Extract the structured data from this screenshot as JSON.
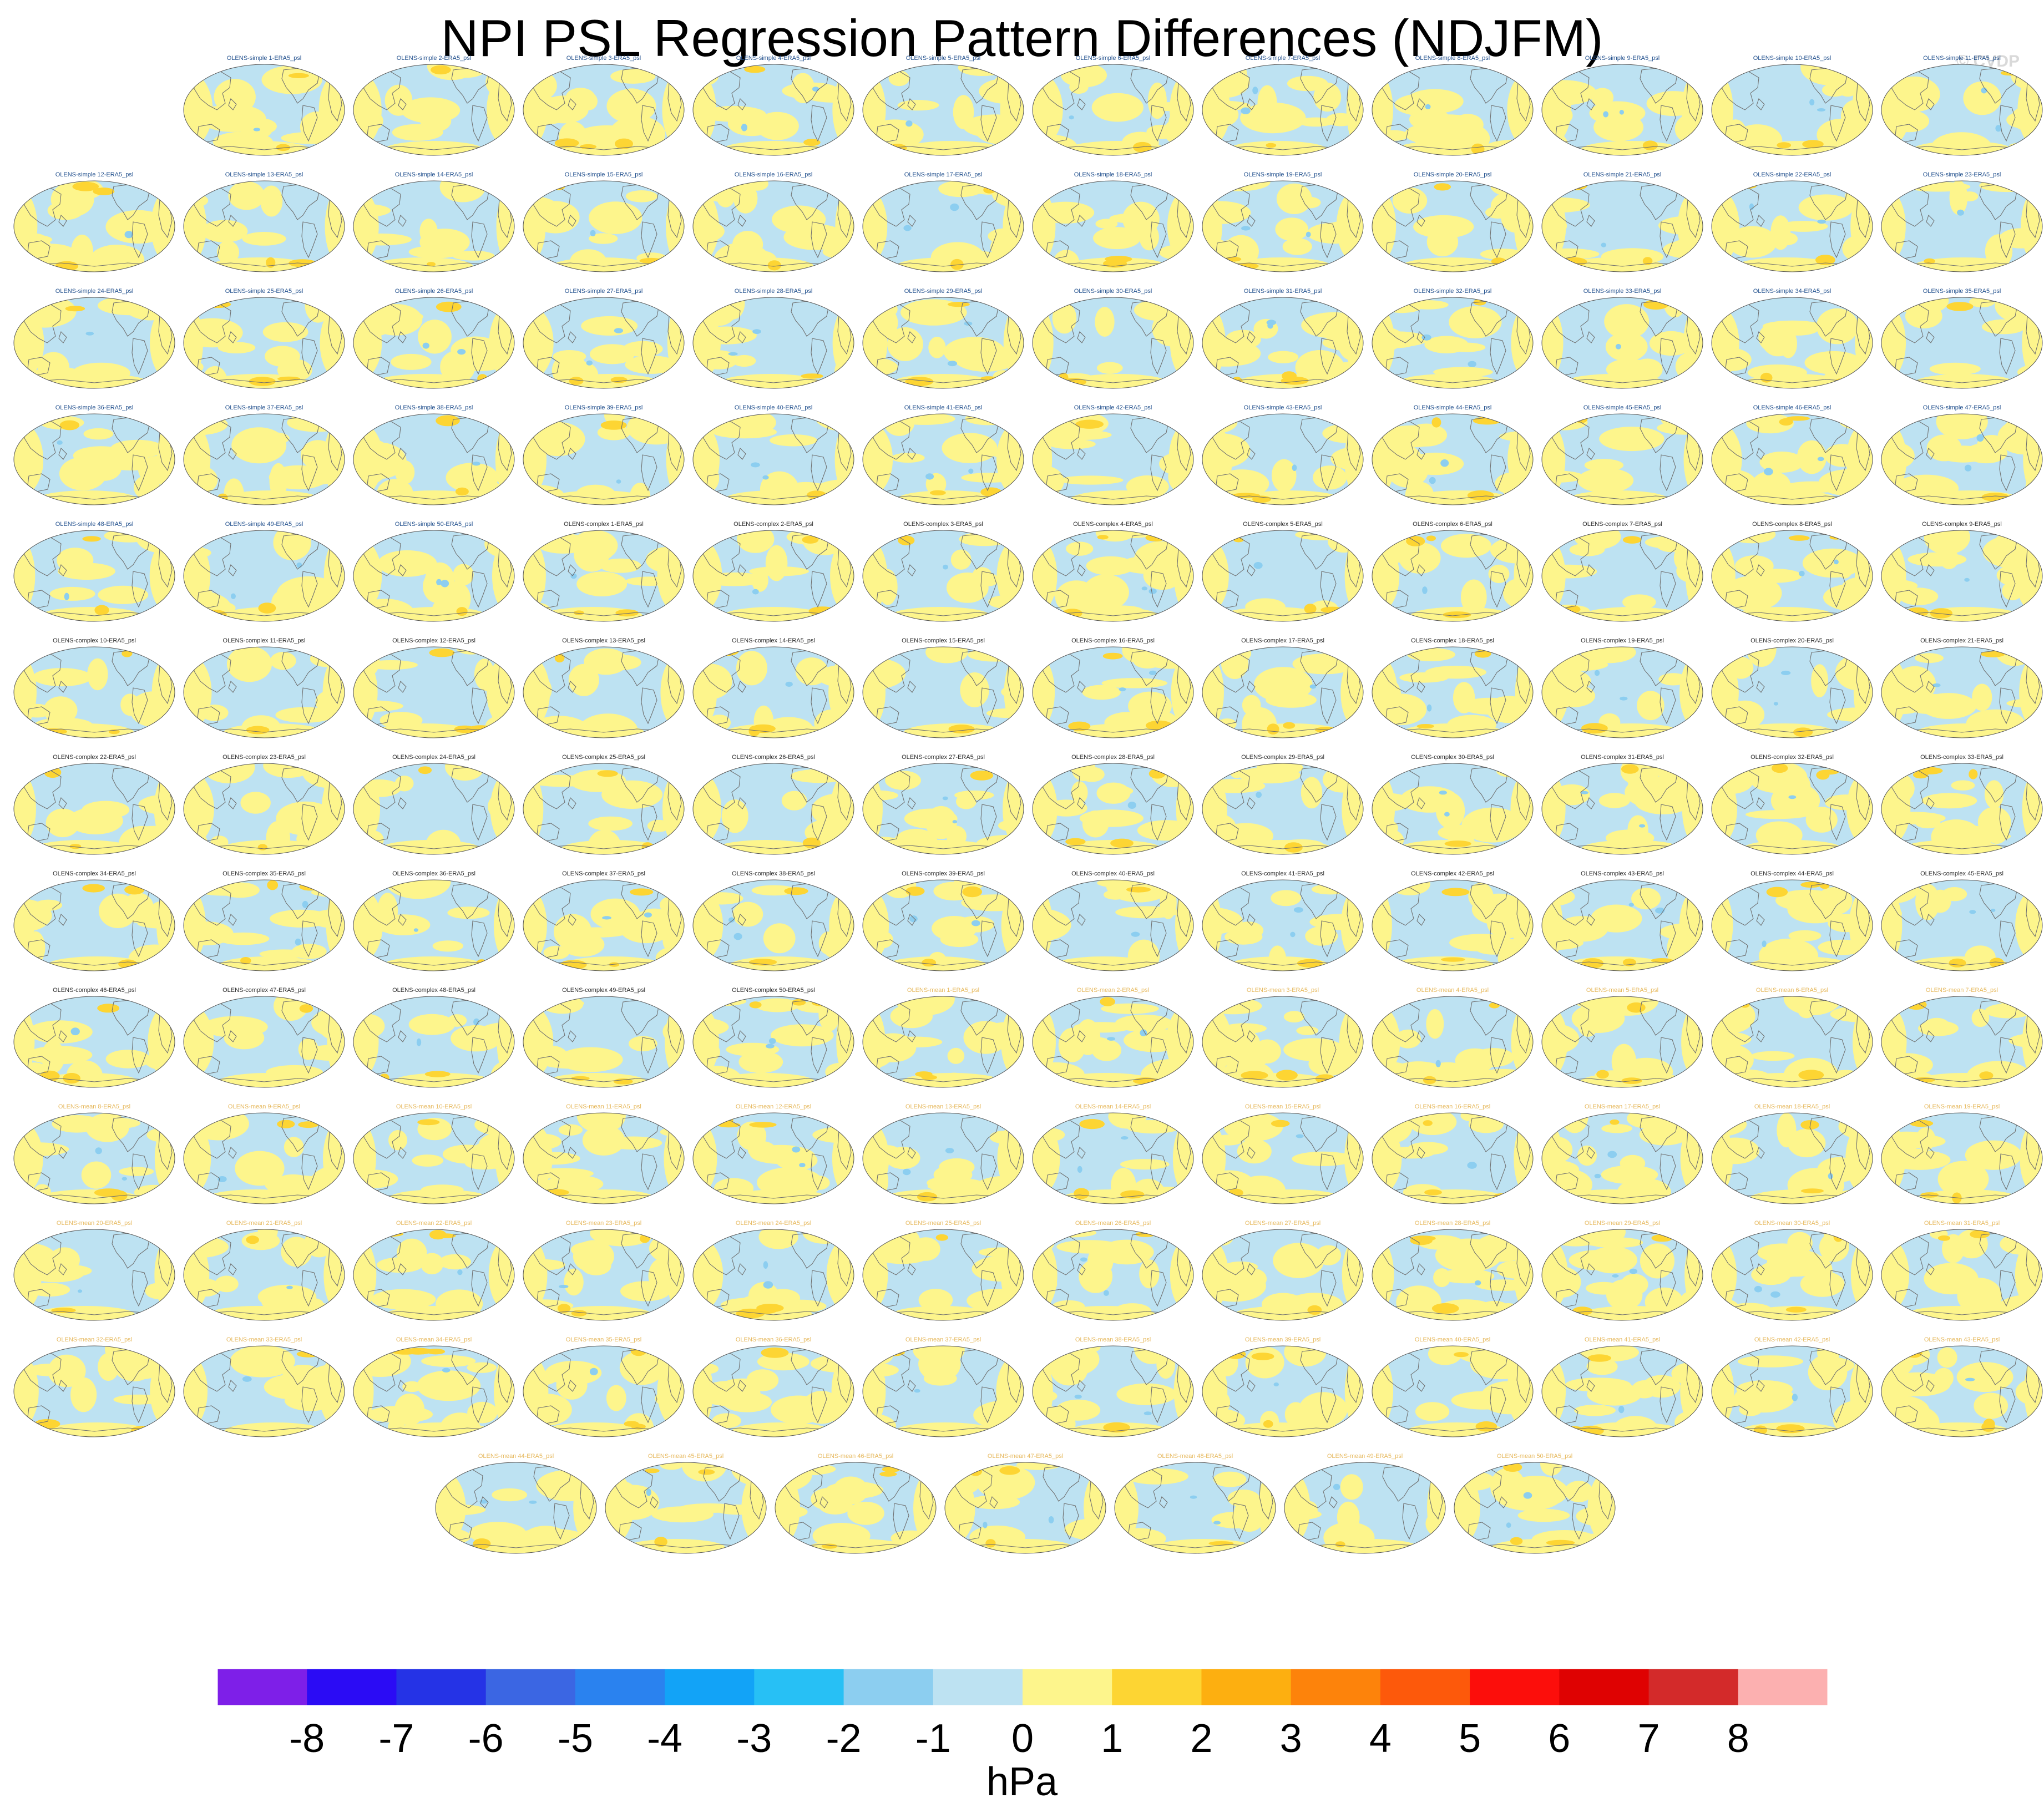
{
  "chart_data": {
    "type": "map-panels",
    "title": "NPI PSL Regression Pattern Differences (NDJFM)",
    "watermark": "© CVDP",
    "panel_title_suffix": "-ERA5_psl",
    "panel_groups": [
      {
        "name": "OLENS-simple",
        "count": 50,
        "label_color": "#1f4e8c"
      },
      {
        "name": "OLENS-complex",
        "count": 50,
        "label_color": "#2a2a2a"
      },
      {
        "name": "OLENS-mean",
        "count": 50,
        "label_color": "#e6b85c"
      }
    ],
    "colorbar": {
      "unit": "hPa",
      "tick_labels": [
        "-8",
        "-7",
        "-6",
        "-5",
        "-4",
        "-3",
        "-2",
        "-1",
        "0",
        "1",
        "2",
        "3",
        "4",
        "5",
        "6",
        "7",
        "8"
      ],
      "colors": [
        "#7e1fe8",
        "#2b0bf5",
        "#2533e6",
        "#3b66e3",
        "#2a82ef",
        "#12a3f7",
        "#27c0f5",
        "#8ccef0",
        "#bde2f2",
        "#fdf58c",
        "#fdd533",
        "#fdaf10",
        "#fd830b",
        "#fd590b",
        "#fc0e0b",
        "#df0202",
        "#d32a2a",
        "#fcb0b0"
      ]
    }
  }
}
